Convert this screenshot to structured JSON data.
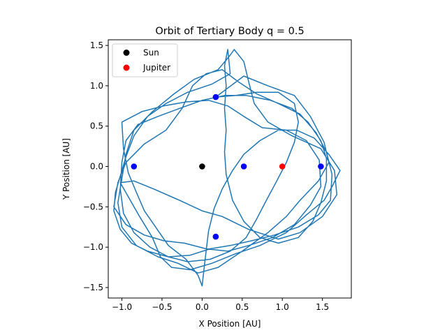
{
  "chart_data": {
    "type": "scatter",
    "title": "Orbit of Tertiary Body q = 0.5",
    "xlabel": "X Position [AU]",
    "ylabel": "Y Position [AU]",
    "xlim": [
      -1.17,
      1.86
    ],
    "ylim": [
      -1.63,
      1.57
    ],
    "xticks": [
      -1.0,
      -0.5,
      0.0,
      0.5,
      1.0,
      1.5
    ],
    "xtick_labels": [
      "−1.0",
      "−0.5",
      "0.0",
      "0.5",
      "1.0",
      "1.5"
    ],
    "yticks": [
      -1.5,
      -1.0,
      -0.5,
      0.0,
      0.5,
      1.0,
      1.5
    ],
    "ytick_labels": [
      "−1.5",
      "−1.0",
      "−0.5",
      "0.0",
      "0.5",
      "1.0",
      "1.5"
    ],
    "grid": false,
    "legend_position": "top-left",
    "series": [
      {
        "name": "Sun",
        "kind": "points",
        "color": "#000000",
        "points": [
          [
            0.0,
            0.0
          ]
        ]
      },
      {
        "name": "Jupiter",
        "kind": "points",
        "color": "#ff0000",
        "points": [
          [
            1.0,
            0.0
          ]
        ]
      },
      {
        "kind": "points",
        "color": "#0000ff",
        "points": [
          [
            0.52,
            0.0
          ],
          [
            -0.85,
            0.0
          ],
          [
            1.48,
            0.0
          ],
          [
            0.17,
            0.86
          ],
          [
            0.17,
            -0.87
          ]
        ]
      },
      {
        "kind": "line",
        "color": "#1f77b4",
        "points": [
          [
            0.17,
            0.86
          ],
          [
            0.52,
            1.12
          ],
          [
            0.82,
            1.0
          ],
          [
            1.15,
            0.88
          ],
          [
            1.35,
            0.62
          ],
          [
            1.52,
            0.3
          ],
          [
            1.58,
            0.05
          ],
          [
            1.45,
            -0.18
          ],
          [
            1.22,
            -0.42
          ],
          [
            1.05,
            -0.62
          ],
          [
            0.82,
            -0.82
          ],
          [
            0.5,
            -1.05
          ],
          [
            0.2,
            -1.25
          ],
          [
            -0.05,
            -1.32
          ],
          [
            -0.3,
            -1.2
          ],
          [
            -0.55,
            -1.12
          ],
          [
            -0.82,
            -0.98
          ],
          [
            -1.0,
            -0.75
          ],
          [
            -1.05,
            -0.45
          ],
          [
            -1.0,
            -0.15
          ],
          [
            -0.95,
            0.15
          ],
          [
            -0.85,
            0.45
          ],
          [
            -0.62,
            0.68
          ],
          [
            -0.35,
            0.9
          ],
          [
            -0.1,
            1.08
          ],
          [
            0.2,
            1.2
          ],
          [
            0.35,
            1.38
          ],
          [
            0.4,
            1.45
          ],
          [
            0.52,
            1.3
          ],
          [
            0.58,
            1.05
          ],
          [
            0.65,
            0.78
          ],
          [
            0.82,
            0.55
          ],
          [
            1.12,
            0.38
          ],
          [
            1.48,
            0.22
          ],
          [
            1.65,
            -0.05
          ],
          [
            1.68,
            -0.35
          ],
          [
            1.5,
            -0.62
          ],
          [
            1.22,
            -0.82
          ],
          [
            0.95,
            -0.9
          ],
          [
            0.58,
            -0.78
          ],
          [
            0.25,
            -0.62
          ],
          [
            0.0,
            -0.55
          ],
          [
            -0.28,
            -0.42
          ],
          [
            -0.6,
            -0.28
          ],
          [
            -0.85,
            -0.18
          ],
          [
            -1.02,
            -0.2
          ],
          [
            -0.78,
            -0.62
          ],
          [
            -0.62,
            -0.88
          ],
          [
            -0.52,
            -1.12
          ],
          [
            -0.38,
            -1.25
          ],
          [
            -0.15,
            -1.28
          ],
          [
            0.12,
            -1.2
          ],
          [
            0.42,
            -1.08
          ],
          [
            0.72,
            -0.98
          ],
          [
            1.05,
            -0.82
          ],
          [
            1.3,
            -0.6
          ],
          [
            1.52,
            -0.42
          ],
          [
            1.62,
            -0.25
          ],
          [
            1.72,
            -0.05
          ],
          [
            1.58,
            0.15
          ],
          [
            1.4,
            0.35
          ],
          [
            1.18,
            0.45
          ],
          [
            0.95,
            0.45
          ],
          [
            0.72,
            0.32
          ],
          [
            0.52,
            0.15
          ],
          [
            0.38,
            -0.05
          ],
          [
            0.25,
            -0.28
          ],
          [
            0.15,
            -0.52
          ],
          [
            0.08,
            -0.8
          ],
          [
            0.05,
            -1.05
          ],
          [
            0.02,
            -1.3
          ],
          [
            0.0,
            -1.48
          ],
          [
            -0.05,
            -1.35
          ],
          [
            -0.2,
            -1.15
          ],
          [
            -0.42,
            -0.98
          ],
          [
            -0.58,
            -0.75
          ],
          [
            -0.72,
            -0.55
          ],
          [
            -0.82,
            -0.32
          ],
          [
            -0.92,
            -0.08
          ],
          [
            -0.98,
            0.22
          ],
          [
            -1.0,
            0.55
          ],
          [
            -0.75,
            0.68
          ],
          [
            -0.48,
            0.75
          ],
          [
            -0.2,
            0.8
          ],
          [
            0.08,
            0.82
          ],
          [
            0.32,
            0.75
          ],
          [
            0.52,
            0.62
          ],
          [
            0.75,
            0.48
          ],
          [
            1.05,
            0.45
          ],
          [
            1.3,
            0.32
          ],
          [
            1.46,
            0.08
          ],
          [
            1.48,
            -0.25
          ],
          [
            1.35,
            -0.48
          ],
          [
            1.15,
            -0.72
          ],
          [
            0.88,
            -0.88
          ],
          [
            0.58,
            -0.98
          ],
          [
            0.32,
            -1.05
          ],
          [
            0.05,
            -1.02
          ],
          [
            -0.22,
            -0.95
          ],
          [
            -0.48,
            -0.92
          ],
          [
            -0.72,
            -0.85
          ],
          [
            -0.95,
            -0.72
          ],
          [
            -1.1,
            -0.5
          ],
          [
            -1.05,
            -0.2
          ],
          [
            -0.95,
            0.05
          ],
          [
            -0.72,
            0.28
          ],
          [
            -0.45,
            0.45
          ],
          [
            -0.25,
            0.72
          ],
          [
            -0.12,
            1.0
          ],
          [
            0.05,
            1.15
          ],
          [
            0.25,
            1.2
          ],
          [
            0.45,
            1.05
          ],
          [
            0.68,
            0.9
          ],
          [
            0.95,
            0.78
          ],
          [
            1.22,
            0.65
          ],
          [
            1.42,
            0.42
          ],
          [
            1.55,
            0.18
          ],
          [
            1.62,
            -0.1
          ],
          [
            1.6,
            -0.42
          ],
          [
            1.45,
            -0.6
          ],
          [
            1.2,
            -0.75
          ],
          [
            0.9,
            -0.85
          ],
          [
            0.62,
            -0.92
          ],
          [
            0.35,
            -0.98
          ],
          [
            0.1,
            -1.02
          ],
          [
            -0.15,
            -1.1
          ],
          [
            -0.42,
            -1.12
          ],
          [
            -0.68,
            -1.05
          ],
          [
            -0.88,
            -0.95
          ],
          [
            -1.02,
            -0.78
          ],
          [
            -1.1,
            -0.55
          ],
          [
            -1.08,
            -0.32
          ],
          [
            -1.02,
            -0.12
          ],
          [
            -0.95,
            0.12
          ],
          [
            -0.85,
            0.38
          ],
          [
            -0.68,
            0.62
          ],
          [
            -0.45,
            0.78
          ],
          [
            -0.18,
            0.92
          ],
          [
            0.12,
            1.02
          ],
          [
            0.35,
            1.15
          ],
          [
            0.32,
            1.45
          ],
          [
            0.28,
            1.25
          ],
          [
            0.3,
            1.0
          ],
          [
            0.28,
            0.72
          ],
          [
            0.3,
            0.45
          ],
          [
            0.28,
            0.18
          ],
          [
            0.3,
            -0.1
          ],
          [
            0.38,
            -0.42
          ],
          [
            0.52,
            -0.68
          ],
          [
            0.72,
            -0.88
          ],
          [
            0.95,
            -0.95
          ],
          [
            1.2,
            -0.88
          ],
          [
            1.38,
            -0.68
          ],
          [
            1.48,
            -0.45
          ],
          [
            1.55,
            -0.18
          ],
          [
            1.55,
            0.1
          ],
          [
            1.48,
            0.32
          ],
          [
            1.32,
            0.55
          ],
          [
            1.12,
            0.72
          ],
          [
            0.85,
            0.82
          ],
          [
            0.55,
            0.88
          ],
          [
            0.28,
            0.88
          ],
          [
            0.0,
            0.82
          ],
          [
            -0.28,
            0.72
          ],
          [
            -0.55,
            0.62
          ],
          [
            -0.8,
            0.52
          ],
          [
            -0.95,
            0.32
          ],
          [
            -1.0,
            0.05
          ],
          [
            -1.02,
            -0.28
          ],
          [
            -0.98,
            -0.58
          ],
          [
            -0.85,
            -0.82
          ],
          [
            -0.65,
            -1.0
          ],
          [
            -0.42,
            -1.12
          ],
          [
            -0.18,
            -1.18
          ],
          [
            0.1,
            -1.15
          ],
          [
            0.35,
            -1.05
          ],
          [
            0.55,
            -0.88
          ],
          [
            0.68,
            -0.65
          ],
          [
            0.8,
            -0.42
          ],
          [
            0.92,
            -0.2
          ],
          [
            1.05,
            0.05
          ],
          [
            1.15,
            0.3
          ],
          [
            1.2,
            0.55
          ],
          [
            1.15,
            0.78
          ],
          [
            0.95,
            0.92
          ],
          [
            0.68,
            0.92
          ],
          [
            0.42,
            0.88
          ],
          [
            0.17,
            0.86
          ]
        ]
      }
    ]
  }
}
